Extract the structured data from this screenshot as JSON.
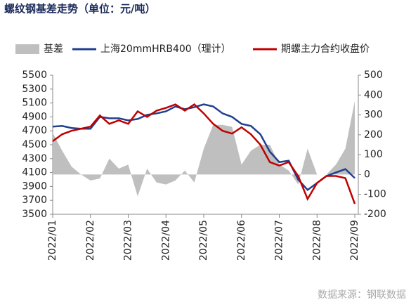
{
  "chart_data": {
    "type": "line",
    "title": "螺纹钢基差走势（单位：元/吨）",
    "source": "数据来源：钢联数据",
    "categories": [
      "2022/01",
      null,
      null,
      null,
      "2022/02",
      null,
      null,
      null,
      "2022/03",
      null,
      null,
      null,
      "2022/04",
      null,
      null,
      null,
      "2022/05",
      null,
      null,
      null,
      "2022/06",
      null,
      null,
      null,
      "2022/07",
      null,
      null,
      null,
      "2022/08",
      null,
      null,
      null,
      "2022/09"
    ],
    "series": [
      {
        "name": "基差",
        "type": "area",
        "axis": "y2",
        "color": "#bfbfbf",
        "values": [
          210,
          120,
          40,
          0,
          -30,
          -20,
          80,
          30,
          50,
          -110,
          30,
          -40,
          -50,
          -30,
          20,
          -40,
          130,
          250,
          250,
          240,
          50,
          120,
          150,
          150,
          50,
          20,
          -50,
          130,
          0,
          0,
          50,
          130,
          370
        ]
      },
      {
        "name": "上海20mmHRB400（理计）",
        "type": "line",
        "color": "#1f3f8f",
        "values": [
          4760,
          4770,
          4740,
          4730,
          4730,
          4900,
          4880,
          4880,
          4850,
          4870,
          4930,
          4950,
          4980,
          5050,
          5010,
          5040,
          5080,
          5050,
          4950,
          4900,
          4800,
          4770,
          4650,
          4400,
          4250,
          4270,
          4000,
          3850,
          3950,
          4050,
          4100,
          4150,
          4020
        ]
      },
      {
        "name": "期螺主力合约收盘价",
        "type": "line",
        "color": "#c00000",
        "values": [
          4550,
          4650,
          4700,
          4730,
          4760,
          4920,
          4800,
          4850,
          4800,
          4980,
          4900,
          4990,
          5030,
          5080,
          4990,
          5080,
          4950,
          4800,
          4700,
          4660,
          4750,
          4650,
          4500,
          4250,
          4200,
          4250,
          4050,
          3720,
          3950,
          4050,
          4050,
          4020,
          3650
        ]
      }
    ],
    "ylim": [
      3500,
      5500
    ],
    "yticks": [
      3500,
      3700,
      3900,
      4100,
      4300,
      4500,
      4700,
      4900,
      5100,
      5300,
      5500
    ],
    "y2lim": [
      -200,
      500
    ],
    "y2ticks": [
      -200,
      -100,
      0,
      100,
      200,
      300,
      400,
      500
    ]
  }
}
